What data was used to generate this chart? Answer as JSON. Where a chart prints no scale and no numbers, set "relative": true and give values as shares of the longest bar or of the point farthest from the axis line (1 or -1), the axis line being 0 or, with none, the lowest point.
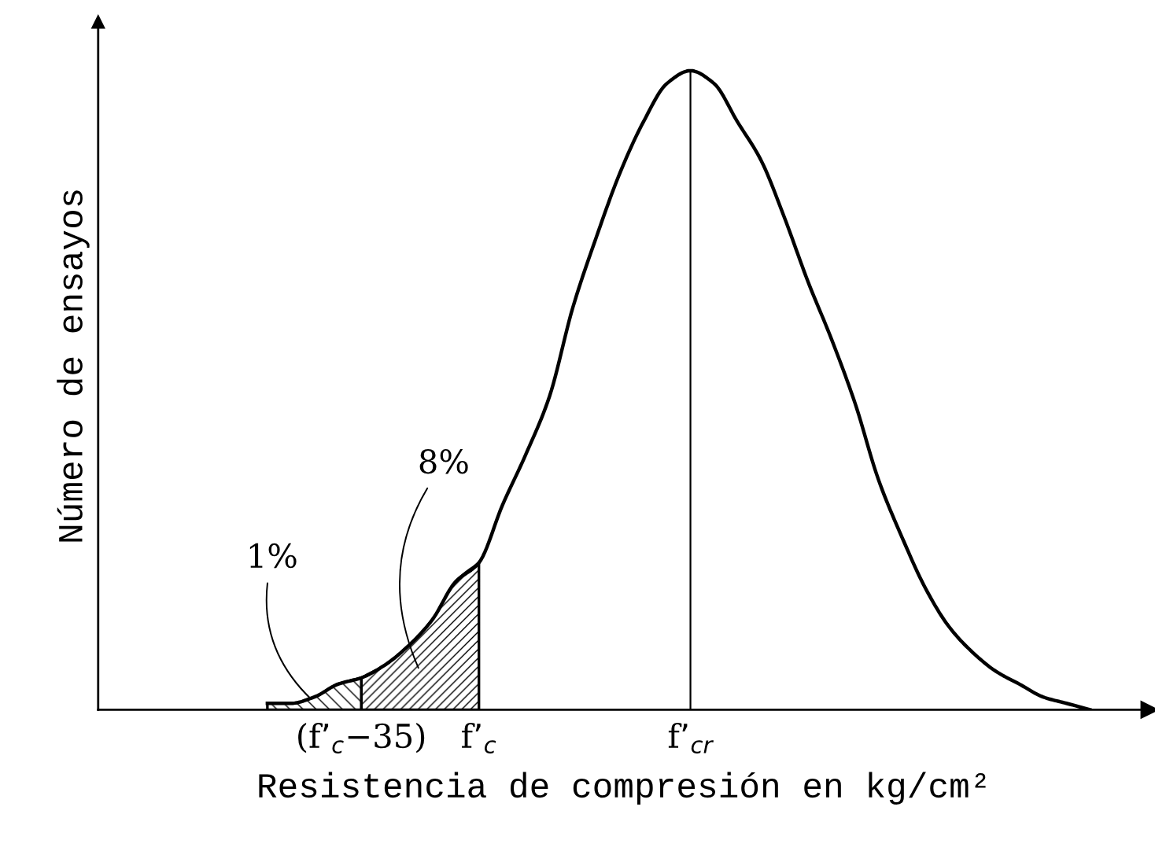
{
  "chart_data": {
    "type": "line",
    "relative": true,
    "xlabel": "Resistencia de compresión en kg/cm²",
    "ylabel": "Número de ensayos",
    "categories": [
      null,
      null,
      null,
      null,
      "(f’$_{c}$−35)",
      null,
      null,
      null,
      null,
      "f’$_{c}$",
      null,
      null,
      null,
      null,
      null,
      null,
      null,
      null,
      "f’$_{cr}$",
      null,
      null,
      null,
      null,
      null,
      null,
      null,
      null,
      null,
      null,
      null,
      null,
      null,
      null,
      null,
      null,
      null
    ],
    "series": [
      {
        "color": "#000000",
        "values": [
          0.01,
          0.01,
          0.02,
          0.04,
          0.05,
          0.07,
          0.1,
          0.14,
          0.2,
          0.23,
          0.32,
          0.4,
          0.49,
          0.63,
          0.74,
          0.84,
          0.92,
          0.98,
          1.0,
          0.98,
          0.92,
          0.86,
          0.77,
          0.67,
          0.58,
          0.48,
          0.36,
          0.27,
          0.19,
          0.13,
          0.09,
          0.06,
          0.04,
          0.02,
          0.01,
          0.0
        ]
      },
      {
        "type": "area",
        "color": "#000000",
        "values": [
          0.01,
          0.01,
          0.02,
          0.04,
          0.05,
          null,
          null,
          null,
          null,
          null,
          null,
          null,
          null,
          null,
          null,
          null,
          null,
          null,
          null,
          null,
          null,
          null,
          null,
          null,
          null,
          null,
          null,
          null,
          null,
          null,
          null,
          null,
          null,
          null,
          null,
          null
        ]
      },
      {
        "type": "area",
        "color": "#000000",
        "values": [
          null,
          null,
          null,
          null,
          0.05,
          0.07,
          0.1,
          0.14,
          0.2,
          0.23,
          null,
          null,
          null,
          null,
          null,
          null,
          null,
          null,
          null,
          null,
          null,
          null,
          null,
          null,
          null,
          null,
          null,
          null,
          null,
          null,
          null,
          null,
          null,
          null,
          null,
          null
        ]
      }
    ],
    "annotations": [
      "1%",
      "8%"
    ],
    "ref_lines": [
      {
        "axis": "x",
        "value": "f’$_{cr}$",
        "color": "#000000",
        "line_style": "solid"
      }
    ],
    "tick_labels": "x",
    "grid": false,
    "legend": false,
    "marker": "none",
    "line_style": "solid"
  }
}
